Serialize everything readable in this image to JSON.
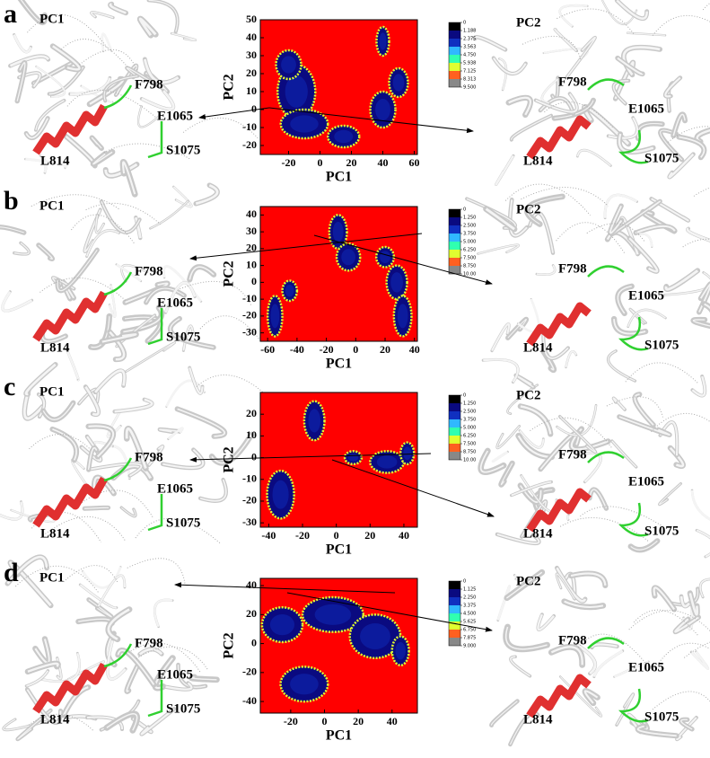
{
  "panels": [
    {
      "letter": "a",
      "left": {
        "title": "PC1",
        "labels": [
          "F798",
          "E1065",
          "S1075",
          "L814"
        ]
      },
      "right": {
        "title": "PC2",
        "labels": [
          "F798",
          "E1065",
          "S1075",
          "L814"
        ]
      }
    },
    {
      "letter": "b",
      "left": {
        "title": "PC1",
        "labels": [
          "F798",
          "E1065",
          "S1075",
          "L814"
        ]
      },
      "right": {
        "title": "PC2",
        "labels": [
          "F798",
          "E1065",
          "S1075",
          "L814"
        ]
      }
    },
    {
      "letter": "c",
      "left": {
        "title": "PC1",
        "labels": [
          "F798",
          "E1065",
          "S1075",
          "L814"
        ]
      },
      "right": {
        "title": "PC2",
        "labels": [
          "F798",
          "E1065",
          "S1075",
          "L814"
        ]
      }
    },
    {
      "letter": "d",
      "left": {
        "title": "PC1",
        "labels": [
          "F798",
          "E1065",
          "S1075",
          "L814"
        ]
      },
      "right": {
        "title": "PC2",
        "labels": [
          "F798",
          "E1065",
          "S1075",
          "L814"
        ]
      }
    }
  ],
  "chart_data": [
    {
      "type": "contour",
      "xlabel": "PC1",
      "ylabel": "PC2",
      "xlim": [
        -38,
        62
      ],
      "ylim": [
        -25,
        50
      ],
      "xticks": [
        -20,
        0,
        20,
        40,
        60
      ],
      "yticks": [
        -20,
        -10,
        0,
        10,
        20,
        30,
        40,
        50
      ],
      "background_color": "#ff0000",
      "basins": [
        {
          "x": -15,
          "y": 10,
          "rx": 12,
          "ry": 15
        },
        {
          "x": -20,
          "y": 25,
          "rx": 8,
          "ry": 8
        },
        {
          "x": -10,
          "y": -8,
          "rx": 15,
          "ry": 8
        },
        {
          "x": 15,
          "y": -15,
          "rx": 10,
          "ry": 6
        },
        {
          "x": 40,
          "y": 0,
          "rx": 8,
          "ry": 10
        },
        {
          "x": 50,
          "y": 15,
          "rx": 6,
          "ry": 8
        },
        {
          "x": 40,
          "y": 38,
          "rx": 4,
          "ry": 8
        }
      ],
      "colorbar": {
        "ticks": [
          0,
          {
            "value": 1.188,
            "label": "1.188"
          },
          {
            "value": 2.375,
            "label": "2.375"
          },
          {
            "value": 3.563,
            "label": "3.563"
          },
          {
            "value": 4.75,
            "label": "4.750"
          },
          {
            "value": 5.938,
            "label": "5.938"
          },
          {
            "value": 7.125,
            "label": "7.125"
          },
          {
            "value": 8.313,
            "label": "8.313"
          },
          {
            "value": 9.5,
            "label": "9.500"
          }
        ],
        "colors": [
          "#000000",
          "#0a0a80",
          "#1030c0",
          "#30b8ff",
          "#30ffb0",
          "#e0ff30",
          "#ff6020",
          "#888888"
        ]
      }
    },
    {
      "type": "contour",
      "xlabel": "PC1",
      "ylabel": "PC2",
      "xlim": [
        -65,
        42
      ],
      "ylim": [
        -35,
        45
      ],
      "xticks": [
        -60,
        -40,
        -20,
        0,
        20,
        40
      ],
      "yticks": [
        -30,
        -20,
        -10,
        0,
        10,
        20,
        30,
        40
      ],
      "background_color": "#ff0000",
      "basins": [
        {
          "x": -55,
          "y": -20,
          "rx": 5,
          "ry": 12
        },
        {
          "x": -45,
          "y": -5,
          "rx": 5,
          "ry": 6
        },
        {
          "x": -12,
          "y": 30,
          "rx": 6,
          "ry": 10
        },
        {
          "x": -5,
          "y": 15,
          "rx": 8,
          "ry": 8
        },
        {
          "x": 20,
          "y": 15,
          "rx": 6,
          "ry": 6
        },
        {
          "x": 28,
          "y": 0,
          "rx": 7,
          "ry": 10
        },
        {
          "x": 32,
          "y": -20,
          "rx": 6,
          "ry": 12
        }
      ],
      "colorbar": {
        "ticks": [
          0,
          {
            "value": 1.25,
            "label": "1.250"
          },
          {
            "value": 2.5,
            "label": "2.500"
          },
          {
            "value": 3.75,
            "label": "3.750"
          },
          {
            "value": 5,
            "label": "5.000"
          },
          {
            "value": 6.25,
            "label": "6.250"
          },
          {
            "value": 7.5,
            "label": "7.500"
          },
          {
            "value": 8.75,
            "label": "8.750"
          },
          {
            "value": 10,
            "label": "10.00"
          }
        ],
        "colors": [
          "#000000",
          "#0a0a80",
          "#1030c0",
          "#30b8ff",
          "#30ffb0",
          "#e0ff30",
          "#ff6020",
          "#888888"
        ]
      }
    },
    {
      "type": "contour",
      "xlabel": "PC1",
      "ylabel": "PC2",
      "xlim": [
        -45,
        48
      ],
      "ylim": [
        -32,
        30
      ],
      "xticks": [
        -40,
        -20,
        0,
        20,
        40
      ],
      "yticks": [
        -30,
        -20,
        -10,
        0,
        10,
        20
      ],
      "background_color": "#ff0000",
      "basins": [
        {
          "x": -13,
          "y": 17,
          "rx": 6,
          "ry": 9
        },
        {
          "x": -33,
          "y": -17,
          "rx": 8,
          "ry": 11
        },
        {
          "x": 10,
          "y": 0,
          "rx": 5,
          "ry": 3
        },
        {
          "x": 30,
          "y": -2,
          "rx": 10,
          "ry": 5
        },
        {
          "x": 42,
          "y": 2,
          "rx": 4,
          "ry": 5
        }
      ],
      "colorbar": {
        "ticks": [
          0,
          {
            "value": 1.25,
            "label": "1.250"
          },
          {
            "value": 2.5,
            "label": "2.500"
          },
          {
            "value": 3.75,
            "label": "3.750"
          },
          {
            "value": 5,
            "label": "5.000"
          },
          {
            "value": 6.25,
            "label": "6.250"
          },
          {
            "value": 7.5,
            "label": "7.500"
          },
          {
            "value": 8.75,
            "label": "8.750"
          },
          {
            "value": 10,
            "label": "10.00"
          }
        ],
        "colors": [
          "#000000",
          "#0a0a80",
          "#1030c0",
          "#30b8ff",
          "#30ffb0",
          "#e0ff30",
          "#ff6020",
          "#888888"
        ]
      }
    },
    {
      "type": "contour",
      "xlabel": "PC1",
      "ylabel": "PC2",
      "xlim": [
        -38,
        55
      ],
      "ylim": [
        -48,
        45
      ],
      "xticks": [
        -20,
        0,
        20,
        40
      ],
      "yticks": [
        -40,
        -20,
        0,
        20,
        40
      ],
      "background_color": "#ff0000",
      "basins": [
        {
          "x": -25,
          "y": 13,
          "rx": 12,
          "ry": 12
        },
        {
          "x": 5,
          "y": 20,
          "rx": 18,
          "ry": 12
        },
        {
          "x": 30,
          "y": 5,
          "rx": 15,
          "ry": 15
        },
        {
          "x": -12,
          "y": -28,
          "rx": 14,
          "ry": 12
        },
        {
          "x": 45,
          "y": -5,
          "rx": 5,
          "ry": 10
        }
      ],
      "colorbar": {
        "ticks": [
          0,
          {
            "value": 1.125,
            "label": "1.125"
          },
          {
            "value": 2.25,
            "label": "2.250"
          },
          {
            "value": 3.375,
            "label": "3.375"
          },
          {
            "value": 4.5,
            "label": "4.500"
          },
          {
            "value": 5.625,
            "label": "5.625"
          },
          {
            "value": 6.75,
            "label": "6.750"
          },
          {
            "value": 7.875,
            "label": "7.875"
          },
          {
            "value": 9,
            "label": "9.000"
          }
        ],
        "colors": [
          "#000000",
          "#0a0a80",
          "#1030c0",
          "#30b8ff",
          "#30ffb0",
          "#e0ff30",
          "#ff6020",
          "#888888"
        ]
      }
    }
  ]
}
